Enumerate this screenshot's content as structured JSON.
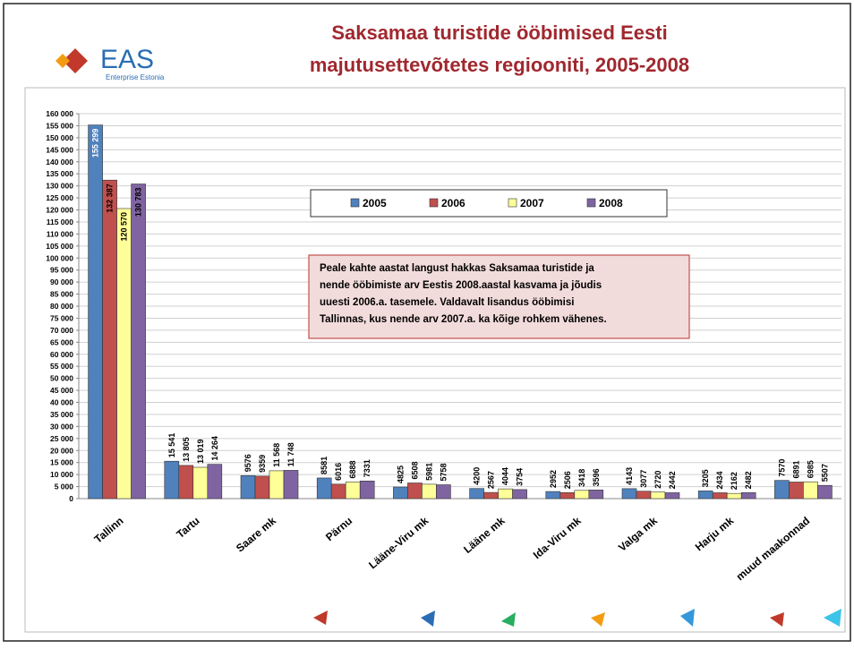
{
  "logo": {
    "name": "EAS",
    "subtitle": "Enterprise Estonia"
  },
  "chart_data": {
    "type": "bar",
    "title": [
      "Saksamaa turistide ööbimised Eesti",
      "majutusettevõtetes regiooniti, 2005-2008"
    ],
    "annotation": [
      "Peale kahte aastat langust hakkas Saksamaa turistide ja",
      "nende ööbimiste arv Eestis 2008.aastal kasvama ja jõudis",
      "uuesti 2006.a. tasemele. Valdavalt lisandus ööbimisi",
      "Tallinnas, kus  nende arv 2007.a. ka kõige  rohkem vähenes."
    ],
    "categories": [
      "Tallinn",
      "Tartu",
      "Saare mk",
      "Pärnu",
      "Lääne-Viru mk",
      "Lääne mk",
      "Ida-Viru mk",
      "Valga mk",
      "Harju mk",
      "muud maakonnad"
    ],
    "series": [
      {
        "name": "2005",
        "color": "#4f81bd",
        "values": [
          155299,
          15541,
          9576,
          8581,
          4825,
          4200,
          2952,
          4143,
          3205,
          7570
        ],
        "value_labels": [
          "155 299",
          "15 541",
          "9576",
          "8581",
          "4825",
          "4200",
          "2952",
          "4143",
          "3205",
          "7570"
        ]
      },
      {
        "name": "2006",
        "color": "#c0504d",
        "values": [
          132387,
          13805,
          9359,
          6016,
          6508,
          2567,
          2506,
          3077,
          2434,
          6891
        ],
        "value_labels": [
          "132 387",
          "13 805",
          "9359",
          "6016",
          "6508",
          "2567",
          "2506",
          "3077",
          "2434",
          "6891"
        ]
      },
      {
        "name": "2007",
        "color": "#ffff99",
        "values": [
          120570,
          13019,
          11568,
          6888,
          5981,
          4044,
          3418,
          2720,
          2162,
          6985
        ],
        "value_labels": [
          "120 570",
          "13 019",
          "11 568",
          "6888",
          "5981",
          "4044",
          "3418",
          "2720",
          "2162",
          "6985"
        ]
      },
      {
        "name": "2008",
        "color": "#8064a2",
        "values": [
          130783,
          14264,
          11748,
          7331,
          5758,
          3754,
          3596,
          2442,
          2482,
          5507
        ],
        "value_labels": [
          "130 783",
          "14 264",
          "11 748",
          "7331",
          "5758",
          "3754",
          "3596",
          "2442",
          "2482",
          "5507"
        ]
      }
    ],
    "ylim": [
      0,
      160000
    ],
    "yticks": [
      0,
      {
        "value": 5000,
        "label": "5 000"
      },
      {
        "value": 10000,
        "label": "10 000"
      },
      {
        "value": 15000,
        "label": "15 000"
      },
      {
        "value": 20000,
        "label": "20 000"
      },
      {
        "value": 25000,
        "label": "25 000"
      },
      {
        "value": 30000,
        "label": "30 000"
      },
      {
        "value": 35000,
        "label": "35 000"
      },
      {
        "value": 40000,
        "label": "40 000"
      },
      {
        "value": 45000,
        "label": "45 000"
      },
      {
        "value": 50000,
        "label": "50 000"
      },
      {
        "value": 55000,
        "label": "55 000"
      },
      {
        "value": 60000,
        "label": "60 000"
      },
      {
        "value": 65000,
        "label": "65 000"
      },
      {
        "value": 70000,
        "label": "70 000"
      },
      {
        "value": 75000,
        "label": "75 000"
      },
      {
        "value": 80000,
        "label": "80 000"
      },
      {
        "value": 85000,
        "label": "85 000"
      },
      {
        "value": 90000,
        "label": "90 000"
      },
      {
        "value": 95000,
        "label": "95 000"
      },
      {
        "value": 100000,
        "label": "100 000"
      },
      {
        "value": 105000,
        "label": "105 000"
      },
      {
        "value": 110000,
        "label": "110 000"
      },
      {
        "value": 115000,
        "label": "115 000"
      },
      {
        "value": 120000,
        "label": "120 000"
      },
      {
        "value": 125000,
        "label": "125 000"
      },
      {
        "value": 130000,
        "label": "130 000"
      },
      {
        "value": 135000,
        "label": "135 000"
      },
      {
        "value": 140000,
        "label": "140 000"
      },
      {
        "value": 145000,
        "label": "145 000"
      },
      {
        "value": 150000,
        "label": "150 000"
      },
      {
        "value": 155000,
        "label": "155 000"
      },
      {
        "value": 160000,
        "label": "160 000"
      }
    ],
    "grid": true
  }
}
